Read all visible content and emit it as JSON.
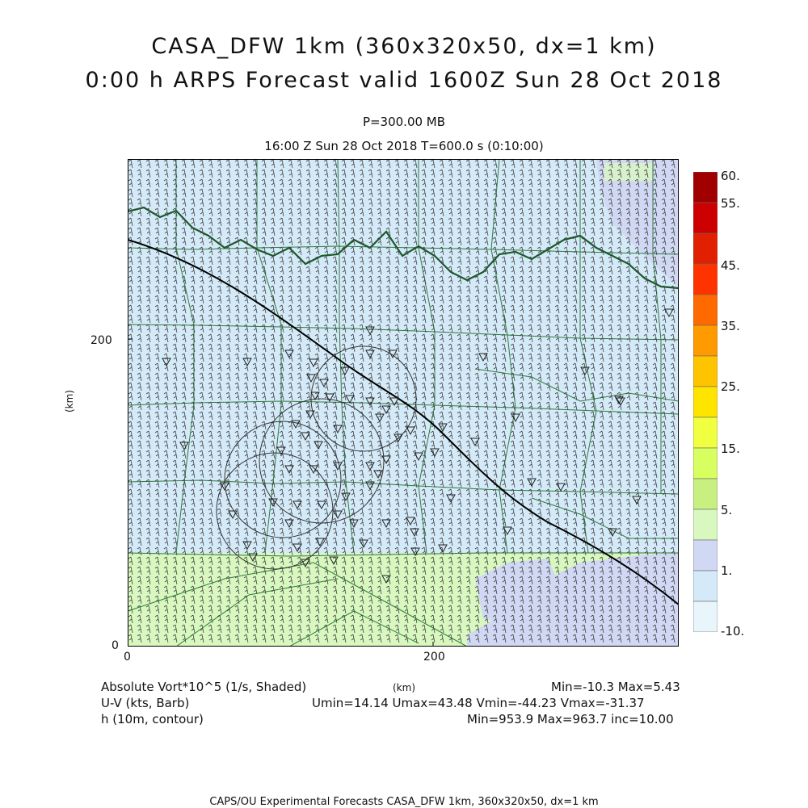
{
  "title_line1": "CASA_DFW 1km (360x320x50, dx=1 km)",
  "title_line2": "0:00 h ARPS Forecast valid 1600Z Sun 28 Oct 2018",
  "pressure_label": "P=300.00 MB",
  "time_label": "16:00 Z Sun 28 Oct 2018    T=600.0 s (0:10:00)",
  "axes": {
    "x_unit": "(km)",
    "y_unit": "(km)",
    "x_ticks": [
      "0",
      "200"
    ],
    "y_ticks": [
      "0",
      "200"
    ],
    "x_range": [
      0,
      360
    ],
    "y_range": [
      0,
      320
    ]
  },
  "colorbar": {
    "labels": [
      "60.",
      "55.",
      "45.",
      "35.",
      "25.",
      "15.",
      "5.",
      "1.",
      "-10."
    ],
    "colors": [
      "#a00000",
      "#cc0000",
      "#e02000",
      "#ff3300",
      "#ff6a00",
      "#ff9a00",
      "#ffc400",
      "#ffe400",
      "#f0ff40",
      "#d8ff60",
      "#c8f080",
      "#d8f8c0",
      "#d0d8f4",
      "#d4eaf8",
      "#e8f6fb"
    ]
  },
  "legend": {
    "field1": "Absolute Vort*10^5 (1/s, Shaded)",
    "field1_stats": "Min=-10.3 Max=5.43",
    "field2": "U-V (kts, Barb)",
    "field2_stats": "Umin=14.14 Umax=43.48 Vmin=-44.23 Vmax=-31.37",
    "field3": "h (10m, contour)",
    "field3_stats": "Min=953.9 Max=963.7 inc=10.00",
    "center_unit": "(km)"
  },
  "footer": "CAPS/OU Experimental Forecasts  CASA_DFW 1km, 360x320x50, dx=1 km"
}
